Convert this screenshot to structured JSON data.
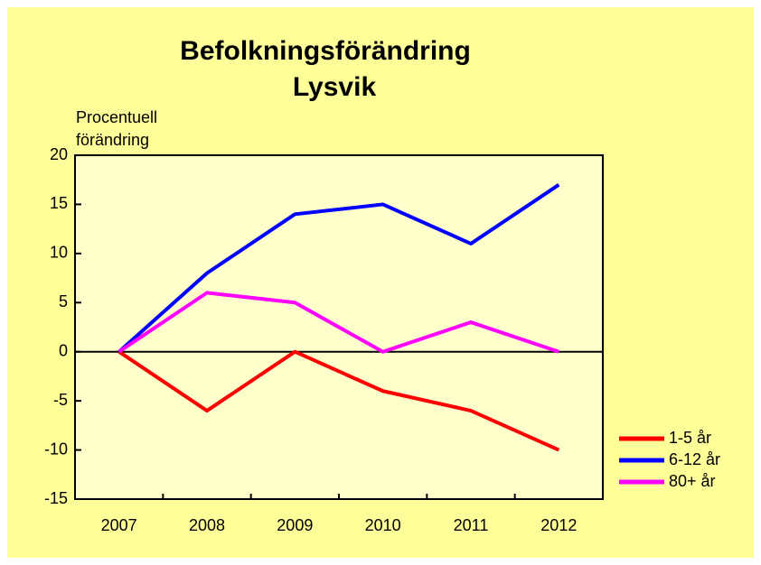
{
  "chart_data": {
    "type": "line",
    "title": [
      "Befolkningsförändring",
      "Lysvik"
    ],
    "y_label": [
      "Procentuell",
      "förändring"
    ],
    "categories": [
      "2007",
      "2008",
      "2009",
      "2010",
      "2011",
      "2012"
    ],
    "series": [
      {
        "name": "1-5 år",
        "color": "#ff0000",
        "values": [
          0,
          -6,
          0,
          -4,
          -6,
          -10
        ]
      },
      {
        "name": "6-12 år",
        "color": "#0000ff",
        "values": [
          0,
          8,
          14,
          15,
          11,
          17
        ]
      },
      {
        "name": "80+ år",
        "color": "#ff00ff",
        "values": [
          0,
          6,
          5,
          0,
          3,
          0
        ]
      }
    ],
    "ylim": [
      -15,
      20
    ],
    "yticks": [
      -15,
      -10,
      -5,
      0,
      5,
      10,
      15,
      20
    ],
    "legend": "right"
  }
}
